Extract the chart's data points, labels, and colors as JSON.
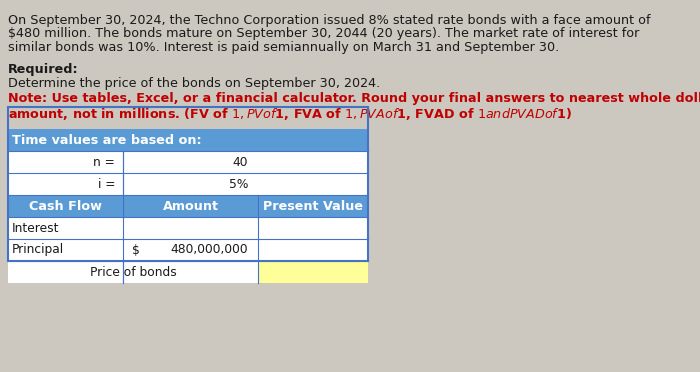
{
  "bg_color": "#ccc8bf",
  "paragraph_text_line1": "On September 30, 2024, the Techno Corporation issued 8% stated rate bonds with a face amount of",
  "paragraph_text_line2": "$480 million. The bonds mature on September 30, 2044 (20 years). The market rate of interest for",
  "paragraph_text_line3": "similar bonds was 10%. Interest is paid semiannually on March 31 and September 30.",
  "required_label": "Required:",
  "determine_text": "Determine the price of the bonds on September 30, 2024.",
  "note_line1": "Note: Use tables, Excel, or a financial calculator. Round your final answers to nearest whole dollar",
  "note_line2_plain": "amount, not in millions. ",
  "note_links": "(FV of $1, PV of $1, FVA of $1, PVA of $1, FVAD of $1 and PVAD of $1)",
  "table_header": "Time values are based on:",
  "n_label": "n =",
  "n_value": "40",
  "i_label": "i =",
  "i_value": "5%",
  "col_headers": [
    "Cash Flow",
    "Amount",
    "Present Value"
  ],
  "row1_label": "Interest",
  "row2_label": "Principal",
  "row2_dollar": "$",
  "row2_amount": "480,000,000",
  "row3_label": "Price of bonds",
  "header_bg": "#5b9bd5",
  "header_text_color": "#ffffff",
  "row_bg_white": "#ffffff",
  "yellow_cell": "#ffff99",
  "table_border": "#4472c4",
  "note_color": "#c00000",
  "text_color": "#1a1a1a",
  "font_size_body": 9.2,
  "font_size_table": 8.8
}
